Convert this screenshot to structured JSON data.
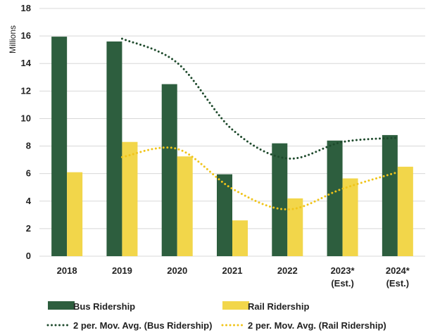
{
  "chart_data": {
    "type": "bar",
    "ylabel": "Millions",
    "ylim": [
      0,
      18
    ],
    "yticks": [
      0,
      2,
      4,
      6,
      8,
      10,
      12,
      14,
      16,
      18
    ],
    "grid": true,
    "legend_position": "bottom",
    "categories": [
      [
        "2018"
      ],
      [
        "2019"
      ],
      [
        "2020"
      ],
      [
        "2021"
      ],
      [
        "2022"
      ],
      [
        "2023*",
        "(Est.)"
      ],
      [
        "2024*",
        "(Est.)"
      ]
    ],
    "series": [
      {
        "name": "Bus Ridership",
        "kind": "bar",
        "color": "#2d5e3e",
        "values": [
          15.95,
          15.6,
          12.5,
          5.95,
          8.2,
          8.4,
          8.8
        ]
      },
      {
        "name": "Rail Ridership",
        "kind": "bar",
        "color": "#f2d64a",
        "values": [
          6.1,
          8.3,
          7.25,
          2.6,
          4.2,
          5.65,
          6.5
        ]
      }
    ],
    "trendlines": [
      {
        "name": "2 per. Mov. Avg. (Bus Ridership)",
        "kind": "dotted-line",
        "color": "#1e4a2c",
        "values": [
          null,
          15.8,
          14.05,
          9.2,
          7.1,
          8.3,
          8.6
        ]
      },
      {
        "name": "2 per. Mov. Avg. (Rail Ridership)",
        "kind": "dotted-line",
        "color": "#f0c419",
        "values": [
          null,
          7.2,
          7.8,
          4.9,
          3.4,
          4.9,
          6.1
        ]
      }
    ]
  }
}
